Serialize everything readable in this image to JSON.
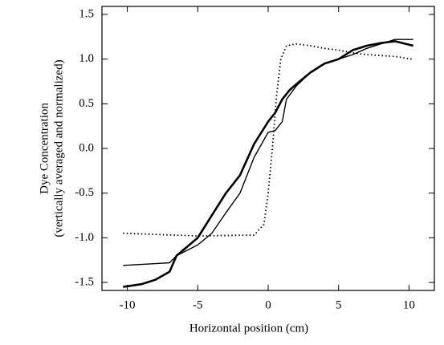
{
  "chart_data": {
    "type": "line",
    "xlabel": "Horizontal position (cm)",
    "ylabel": [
      "Dye Concentration",
      "(vertically averaged and normalized)"
    ],
    "xlim": [
      -11.8,
      11.8
    ],
    "ylim": [
      -1.59,
      1.59
    ],
    "xticks": [
      -10,
      -5,
      0,
      5,
      10
    ],
    "yticks": [
      {
        "value": -1.5,
        "label": "-1.5"
      },
      {
        "value": -1.0,
        "label": "-1.0"
      },
      {
        "value": -0.5,
        "label": "-0.5"
      },
      {
        "value": 0.0,
        "label": "0.0"
      },
      {
        "value": 0.5,
        "label": "0.5"
      },
      {
        "value": 1.0,
        "label": "1.0"
      },
      {
        "value": 1.5,
        "label": "1.5"
      }
    ],
    "grid": false,
    "series": [
      {
        "color": "#000000",
        "style": "thick",
        "x": [
          -10.3,
          -9,
          -8,
          -7,
          -6.5,
          -5,
          -4,
          -3,
          -2,
          -1,
          0,
          0.5,
          1,
          1.5,
          2,
          3,
          4,
          5,
          6,
          7,
          8,
          9,
          10.3
        ],
        "values": [
          -1.55,
          -1.52,
          -1.47,
          -1.38,
          -1.2,
          -1.0,
          -0.75,
          -0.5,
          -0.3,
          0.05,
          0.3,
          0.4,
          0.55,
          0.65,
          0.72,
          0.85,
          0.95,
          1.0,
          1.1,
          1.15,
          1.18,
          1.2,
          1.15
        ]
      },
      {
        "color": "#000000",
        "style": "thin",
        "x": [
          -10.3,
          -8,
          -7,
          -6.5,
          -5,
          -4,
          -3,
          -2,
          -1,
          0,
          0.5,
          1,
          1.3,
          2,
          3,
          4,
          5,
          6,
          7,
          8,
          9,
          10.3
        ],
        "values": [
          -1.31,
          -1.29,
          -1.28,
          -1.2,
          -1.08,
          -0.95,
          -0.72,
          -0.5,
          -0.1,
          0.18,
          0.2,
          0.3,
          0.55,
          0.7,
          0.85,
          0.95,
          1.0,
          1.05,
          1.12,
          1.17,
          1.22,
          1.22
        ]
      },
      {
        "color": "#000000",
        "style": "dotted",
        "x": [
          -10.3,
          -5,
          -1,
          -0.3,
          0,
          0.3,
          0.6,
          0.9,
          1.3,
          2,
          3,
          4,
          5,
          6,
          7,
          8,
          9,
          10.2
        ],
        "values": [
          -0.95,
          -0.98,
          -0.97,
          -0.85,
          -0.5,
          0,
          0.6,
          1.0,
          1.15,
          1.17,
          1.15,
          1.12,
          1.1,
          1.07,
          1.05,
          1.04,
          1.03,
          1.0
        ]
      }
    ]
  }
}
